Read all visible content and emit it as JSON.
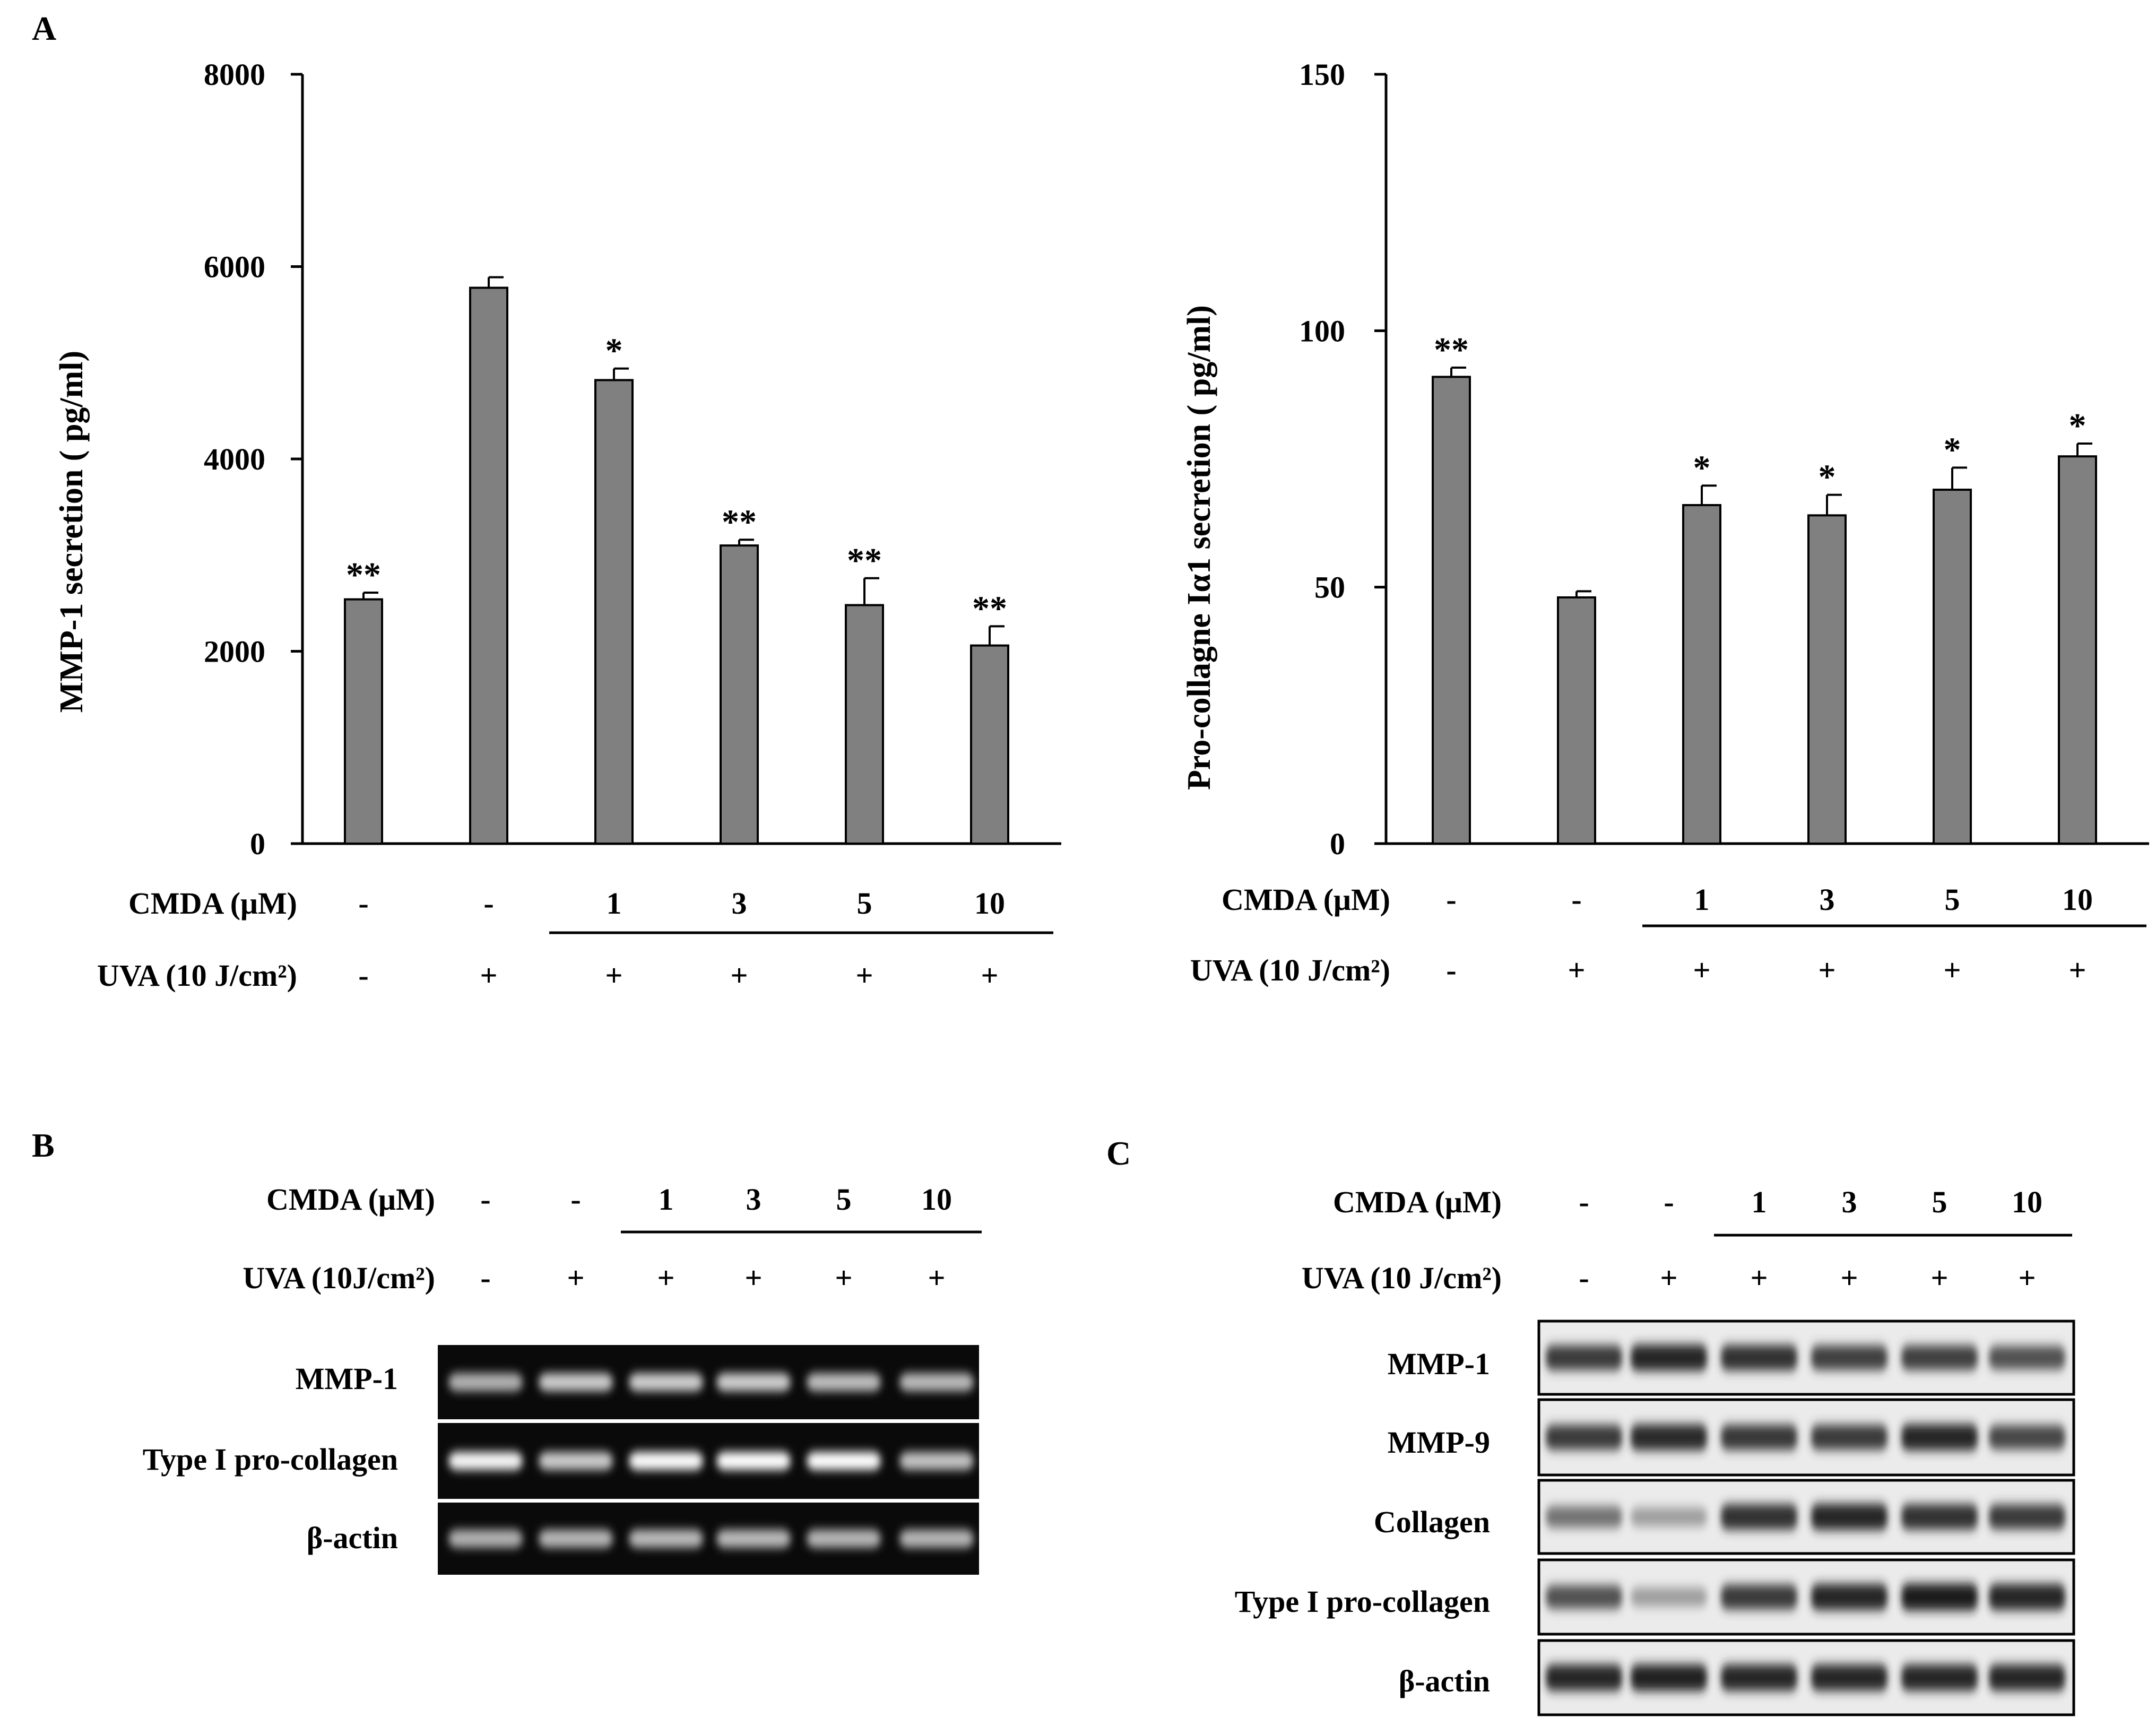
{
  "panels": {
    "A": {
      "label": "A"
    },
    "B": {
      "label": "B"
    },
    "C": {
      "label": "C"
    }
  },
  "treatment": {
    "cmda_values": [
      "-",
      "-",
      "1",
      "3",
      "5",
      "10"
    ],
    "uva_values": [
      "-",
      "+",
      "+",
      "+",
      "+",
      "+"
    ]
  },
  "chart_data": [
    {
      "type": "bar",
      "title": "",
      "xlabel": "",
      "ylabel": "MMP-1 secretion ( pg/ml)",
      "ylim": [
        0,
        8000
      ],
      "yticks": [
        "0",
        "2000",
        "4000",
        "6000",
        "8000"
      ],
      "cmda_label": "CMDA (μM)",
      "uva_label": "UVA (10 J/cm²)",
      "values": [
        2540,
        5780,
        4820,
        3100,
        2480,
        2060
      ],
      "errors": [
        70,
        110,
        120,
        60,
        280,
        200
      ],
      "significance": [
        "**",
        "",
        "*",
        "**",
        "**",
        "**"
      ],
      "bar_color": "#808080",
      "grid": false
    },
    {
      "type": "bar",
      "title": "",
      "xlabel": "",
      "ylabel": "Pro-collagne Iα1 secretion ( pg/ml)",
      "ylim": [
        0,
        150
      ],
      "yticks": [
        "0",
        "50",
        "100",
        "150"
      ],
      "cmda_label": "CMDA (μM)",
      "uva_label": "UVA (10 J/cm²)",
      "values": [
        91,
        48,
        66,
        64,
        69,
        75.5
      ],
      "errors": [
        1.8,
        1.2,
        3.8,
        4,
        4.3,
        2.5
      ],
      "significance": [
        "**",
        "",
        "*",
        "*",
        "*",
        "*"
      ],
      "bar_color": "#808080",
      "grid": false
    }
  ],
  "panel_b": {
    "cmda_label": "CMDA (μM)",
    "uva_label": "UVA (10J/cm²)",
    "rows": [
      {
        "label": "MMP-1",
        "intensity": [
          0.55,
          0.7,
          0.72,
          0.72,
          0.62,
          0.6
        ]
      },
      {
        "label": "Type I pro-collagen",
        "intensity": [
          0.95,
          0.7,
          0.98,
          1.0,
          1.0,
          0.65
        ]
      },
      {
        "label": "β-actin",
        "intensity": [
          0.55,
          0.58,
          0.6,
          0.6,
          0.58,
          0.58
        ]
      }
    ]
  },
  "panel_c": {
    "cmda_label": "CMDA (μM)",
    "uva_label": "UVA (10 J/cm²)",
    "rows": [
      {
        "label": "MMP-1",
        "intensity": [
          0.8,
          0.9,
          0.85,
          0.78,
          0.78,
          0.7
        ]
      },
      {
        "label": "MMP-9",
        "intensity": [
          0.8,
          0.88,
          0.82,
          0.8,
          0.9,
          0.75
        ]
      },
      {
        "label": "Collagen",
        "intensity": [
          0.55,
          0.35,
          0.85,
          0.9,
          0.85,
          0.8
        ]
      },
      {
        "label": "Type I pro-collagen",
        "intensity": [
          0.7,
          0.35,
          0.8,
          0.9,
          0.95,
          0.9
        ]
      },
      {
        "label": "β-actin",
        "intensity": [
          0.9,
          0.92,
          0.9,
          0.9,
          0.9,
          0.9
        ]
      }
    ]
  }
}
